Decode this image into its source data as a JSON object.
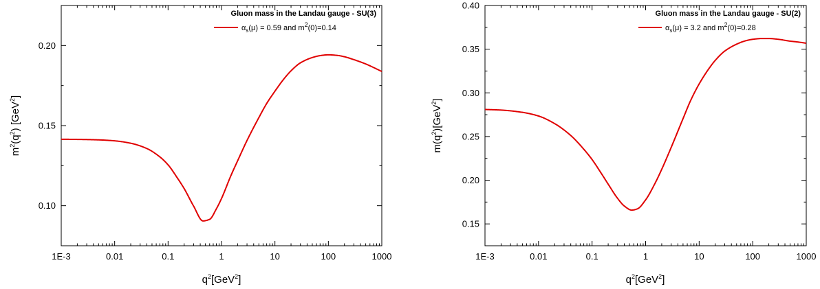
{
  "chart_data": [
    {
      "type": "line",
      "title": "Gluon mass in the Landau gauge - SU(3)",
      "xscale": "log",
      "xlim": [
        0.001,
        1000
      ],
      "ylim": [
        0.075,
        0.225
      ],
      "x_ticks": [
        0.001,
        0.01,
        0.1,
        1,
        10,
        100,
        1000
      ],
      "x_tick_labels": [
        "1E-3",
        "0.01",
        "0.1",
        "1",
        "10",
        "100",
        "1000"
      ],
      "y_ticks": [
        0.1,
        0.15,
        0.2
      ],
      "y_tick_labels": [
        "0.10",
        "0.15",
        "0.20"
      ],
      "xlabel": "q²[GeV²]",
      "ylabel": "m²(q²) [GeV²]",
      "legend_position": "top-right",
      "series": [
        {
          "name": "α_s(μ) = 0.59 and m²(0)=0.14",
          "color": "#e00000",
          "x": [
            0.001,
            0.002,
            0.005,
            0.01,
            0.02,
            0.04,
            0.07,
            0.1,
            0.15,
            0.2,
            0.3,
            0.45,
            0.6,
            0.8,
            1,
            1.5,
            2,
            3,
            5,
            7,
            10,
            15,
            20,
            30,
            50,
            70,
            100,
            150,
            200,
            300,
            500,
            700,
            1000
          ],
          "y": [
            0.1415,
            0.1414,
            0.1411,
            0.1405,
            0.139,
            0.1357,
            0.1305,
            0.1255,
            0.1172,
            0.1107,
            0.0998,
            0.0905,
            0.0915,
            0.098,
            0.1045,
            0.1188,
            0.128,
            0.1407,
            0.155,
            0.1638,
            0.1715,
            0.1795,
            0.1842,
            0.1892,
            0.1925,
            0.1937,
            0.1942,
            0.1938,
            0.193,
            0.1912,
            0.1885,
            0.1863,
            0.1838
          ]
        }
      ]
    },
    {
      "type": "line",
      "title": "Gluon mass in the Landau gauge - SU(2)",
      "xscale": "log",
      "xlim": [
        0.001,
        1000
      ],
      "ylim": [
        0.125,
        0.4
      ],
      "x_ticks": [
        0.001,
        0.01,
        0.1,
        1,
        10,
        100,
        1000
      ],
      "x_tick_labels": [
        "1E-3",
        "0.01",
        "0.1",
        "1",
        "10",
        "100",
        "1000"
      ],
      "y_ticks": [
        0.15,
        0.2,
        0.25,
        0.3,
        0.35,
        0.4
      ],
      "y_tick_labels": [
        "0.15",
        "0.20",
        "0.25",
        "0.30",
        "0.35",
        "0.40"
      ],
      "xlabel": "q²[GeV²]",
      "ylabel": "m(q²)[GeV²]",
      "legend_position": "top-right",
      "series": [
        {
          "name": "α_s(μ) = 3.2 and m²(0)=0.28",
          "color": "#e00000",
          "x": [
            0.001,
            0.002,
            0.005,
            0.01,
            0.02,
            0.04,
            0.07,
            0.1,
            0.15,
            0.2,
            0.3,
            0.4,
            0.55,
            0.7,
            1,
            1.5,
            2,
            3,
            5,
            7,
            10,
            15,
            20,
            30,
            50,
            70,
            100,
            150,
            200,
            300,
            500,
            700,
            1000
          ],
          "y": [
            0.281,
            0.2803,
            0.2777,
            0.2735,
            0.2648,
            0.2512,
            0.2355,
            0.2237,
            0.2075,
            0.1955,
            0.1792,
            0.1705,
            0.1658,
            0.1672,
            0.1775,
            0.1965,
            0.2125,
            0.2375,
            0.2705,
            0.2918,
            0.3102,
            0.3272,
            0.3372,
            0.3478,
            0.3557,
            0.3592,
            0.3613,
            0.3622,
            0.3622,
            0.3613,
            0.3592,
            0.3582,
            0.3568
          ]
        }
      ]
    }
  ]
}
